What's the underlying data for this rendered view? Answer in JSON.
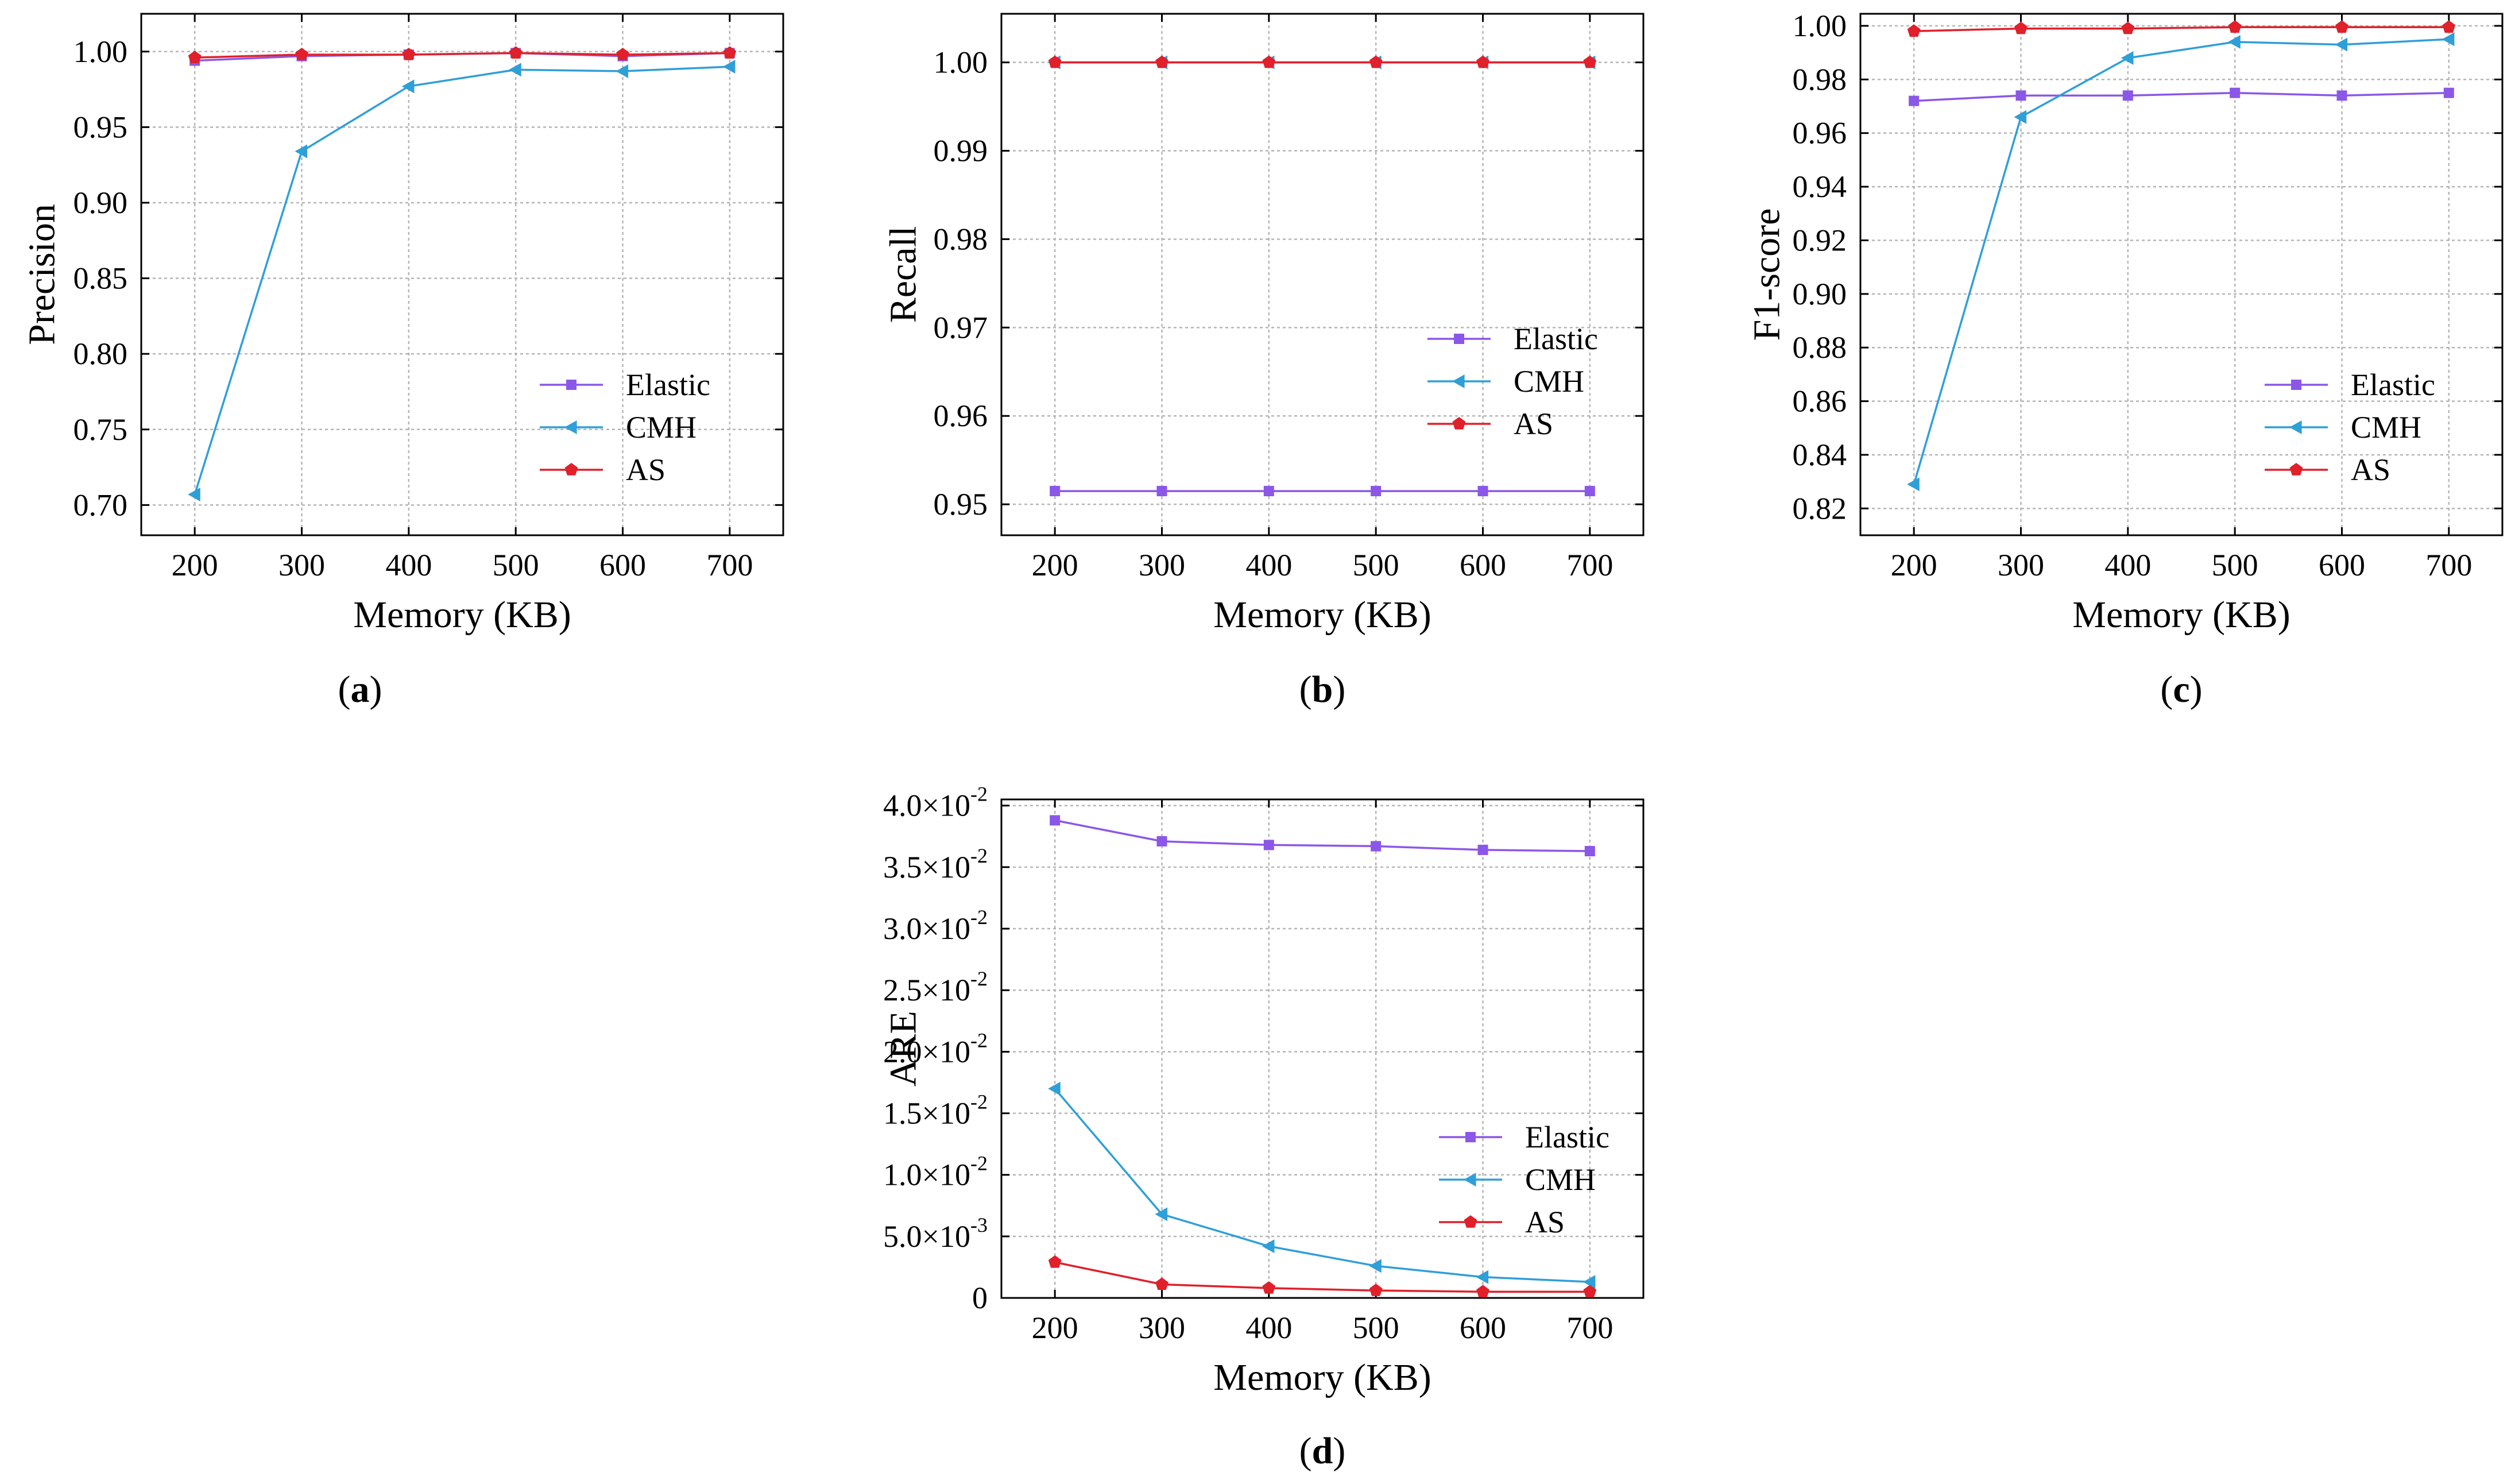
{
  "figure": {
    "subplot_captions": [
      "(a)",
      "(b)",
      "(c)",
      "(d)"
    ]
  },
  "colors": {
    "Elastic": "#8b57e8",
    "CMH": "#2f9fd8",
    "AS": "#e0202a",
    "grid": "#b5b5b5"
  },
  "chart_data": [
    {
      "id": "a",
      "type": "line",
      "caption": {
        "open": "(",
        "letter": "a",
        "close": ")"
      },
      "xlabel": "Memory (KB)",
      "ylabel": "Precision",
      "x": [
        200,
        300,
        400,
        500,
        600,
        700
      ],
      "xticks": [
        "200",
        "300",
        "400",
        "500",
        "600",
        "700"
      ],
      "xlim": [
        150,
        750
      ],
      "ylim": [
        0.68,
        1.025
      ],
      "yticks": [
        0.7,
        0.75,
        0.8,
        0.85,
        0.9,
        0.95,
        1.0
      ],
      "ytick_labels": [
        "0.70",
        "0.75",
        "0.80",
        "0.85",
        "0.90",
        "0.95",
        "1.00"
      ],
      "legend_position": "lower-right",
      "series": [
        {
          "name": "Elastic",
          "marker": "square",
          "values": [
            0.994,
            0.997,
            0.998,
            0.999,
            0.997,
            0.999
          ]
        },
        {
          "name": "CMH",
          "marker": "triangle-left",
          "values": [
            0.707,
            0.934,
            0.977,
            0.988,
            0.987,
            0.99
          ]
        },
        {
          "name": "AS",
          "marker": "pentagon",
          "values": [
            0.996,
            0.998,
            0.998,
            0.999,
            0.998,
            0.999
          ]
        }
      ]
    },
    {
      "id": "b",
      "type": "line",
      "caption": {
        "open": "(",
        "letter": "b",
        "close": ")"
      },
      "xlabel": "Memory (KB)",
      "ylabel": "Recall",
      "x": [
        200,
        300,
        400,
        500,
        600,
        700
      ],
      "xticks": [
        "200",
        "300",
        "400",
        "500",
        "600",
        "700"
      ],
      "xlim": [
        150,
        750
      ],
      "ylim": [
        0.9465,
        1.0055
      ],
      "yticks": [
        0.95,
        0.96,
        0.97,
        0.98,
        0.99,
        1.0
      ],
      "ytick_labels": [
        "0.95",
        "0.96",
        "0.97",
        "0.98",
        "0.99",
        "1.00"
      ],
      "legend_position": "lower-right",
      "series": [
        {
          "name": "Elastic",
          "marker": "square",
          "values": [
            0.9515,
            0.9515,
            0.9515,
            0.9515,
            0.9515,
            0.9515
          ]
        },
        {
          "name": "CMH",
          "marker": "triangle-left",
          "values": [
            1.0,
            1.0,
            1.0,
            1.0,
            1.0,
            1.0
          ]
        },
        {
          "name": "AS",
          "marker": "pentagon",
          "values": [
            1.0,
            1.0,
            1.0,
            1.0,
            1.0,
            1.0
          ]
        }
      ]
    },
    {
      "id": "c",
      "type": "line",
      "caption": {
        "open": "(",
        "letter": "c",
        "close": ")"
      },
      "xlabel": "Memory (KB)",
      "ylabel": "F1-score",
      "x": [
        200,
        300,
        400,
        500,
        600,
        700
      ],
      "xticks": [
        "200",
        "300",
        "400",
        "500",
        "600",
        "700"
      ],
      "xlim": [
        150,
        750
      ],
      "ylim": [
        0.81,
        1.0045
      ],
      "yticks": [
        0.82,
        0.84,
        0.86,
        0.88,
        0.9,
        0.92,
        0.94,
        0.96,
        0.98,
        1.0
      ],
      "ytick_labels": [
        "0.82",
        "0.84",
        "0.86",
        "0.88",
        "0.90",
        "0.92",
        "0.94",
        "0.96",
        "0.98",
        "1.00"
      ],
      "legend_position": "lower-right",
      "series": [
        {
          "name": "Elastic",
          "marker": "square",
          "values": [
            0.972,
            0.974,
            0.974,
            0.975,
            0.974,
            0.975
          ]
        },
        {
          "name": "CMH",
          "marker": "triangle-left",
          "values": [
            0.829,
            0.966,
            0.988,
            0.994,
            0.993,
            0.995
          ]
        },
        {
          "name": "AS",
          "marker": "pentagon",
          "values": [
            0.998,
            0.999,
            0.999,
            0.9995,
            0.9995,
            0.9995
          ]
        }
      ]
    },
    {
      "id": "d",
      "type": "line",
      "caption": {
        "open": "(",
        "letter": "d",
        "close": ")"
      },
      "xlabel": "Memory (KB)",
      "ylabel": "ARE",
      "x": [
        200,
        300,
        400,
        500,
        600,
        700
      ],
      "xticks": [
        "200",
        "300",
        "400",
        "500",
        "600",
        "700"
      ],
      "xlim": [
        150,
        750
      ],
      "ylim": [
        0,
        0.0405
      ],
      "yticks": [
        0,
        0.005,
        0.01,
        0.015,
        0.02,
        0.025,
        0.03,
        0.035,
        0.04
      ],
      "ytick_labels": [
        {
          "mantissa": "0",
          "exp": ""
        },
        {
          "mantissa": "5.0×10",
          "exp": "-3"
        },
        {
          "mantissa": "1.0×10",
          "exp": "-2"
        },
        {
          "mantissa": "1.5×10",
          "exp": "-2"
        },
        {
          "mantissa": "2.0×10",
          "exp": "-2"
        },
        {
          "mantissa": "2.5×10",
          "exp": "-2"
        },
        {
          "mantissa": "3.0×10",
          "exp": "-2"
        },
        {
          "mantissa": "3.5×10",
          "exp": "-2"
        },
        {
          "mantissa": "4.0×10",
          "exp": "-2"
        }
      ],
      "legend_position": "lower-right",
      "series": [
        {
          "name": "Elastic",
          "marker": "square",
          "values": [
            0.0388,
            0.0371,
            0.0368,
            0.0367,
            0.0364,
            0.0363
          ]
        },
        {
          "name": "CMH",
          "marker": "triangle-left",
          "values": [
            0.017,
            0.0068,
            0.0042,
            0.0026,
            0.0017,
            0.0013
          ]
        },
        {
          "name": "AS",
          "marker": "pentagon",
          "values": [
            0.0029,
            0.0011,
            0.0008,
            0.0006,
            0.0005,
            0.0005
          ]
        }
      ]
    }
  ]
}
